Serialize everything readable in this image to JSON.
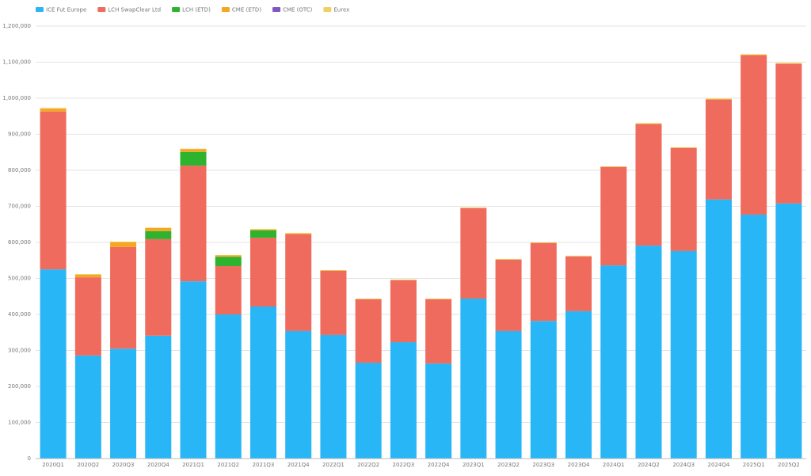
{
  "chart_data": {
    "type": "stacked_bar",
    "categories": [
      "2020Q1",
      "2020Q2",
      "2020Q3",
      "2020Q4",
      "2021Q1",
      "2021Q2",
      "2021Q3",
      "2021Q4",
      "2022Q1",
      "2022Q2",
      "2022Q3",
      "2022Q4",
      "2023Q1",
      "2023Q2",
      "2023Q3",
      "2023Q4",
      "2024Q1",
      "2024Q2",
      "2024Q3",
      "2024Q4",
      "2025Q1",
      "2025Q2"
    ],
    "series": [
      {
        "name": "ICE Fut Europe",
        "color": "#29b6f6",
        "values": [
          525000,
          286000,
          305000,
          341000,
          492000,
          400000,
          422000,
          354000,
          343000,
          266000,
          323000,
          264000,
          444000,
          354000,
          382000,
          409000,
          536000,
          591000,
          576000,
          719000,
          677000,
          708000
        ]
      },
      {
        "name": "LCH SwapClear Ltd",
        "color": "#ef6b5e",
        "values": [
          438000,
          217000,
          282000,
          268000,
          321000,
          134000,
          191000,
          268000,
          178000,
          176000,
          172000,
          178000,
          251000,
          198000,
          216000,
          152000,
          273000,
          337000,
          286000,
          277000,
          442000,
          387000
        ]
      },
      {
        "name": "LCH (ETD)",
        "color": "#2db32d",
        "values": [
          0,
          0,
          0,
          22000,
          38000,
          26000,
          20000,
          0,
          0,
          0,
          0,
          0,
          0,
          0,
          0,
          0,
          0,
          0,
          0,
          0,
          0,
          0
        ]
      },
      {
        "name": "CME (ETD)",
        "color": "#f5a623",
        "values": [
          8000,
          7000,
          13000,
          9000,
          8000,
          4000,
          3000,
          3000,
          1000,
          1000,
          1000,
          1000,
          1000,
          1000,
          1000,
          1000,
          1000,
          2000,
          1000,
          2000,
          2000,
          2000
        ]
      },
      {
        "name": "CME (OTC)",
        "color": "#7e57c2",
        "values": [
          0,
          0,
          0,
          0,
          0,
          0,
          0,
          0,
          0,
          0,
          0,
          0,
          0,
          0,
          0,
          0,
          0,
          0,
          0,
          0,
          0,
          0
        ]
      },
      {
        "name": "Eurex",
        "color": "#f0d060",
        "values": [
          2000,
          2000,
          2000,
          1000,
          1000,
          1000,
          1000,
          1000,
          1000,
          1000,
          1000,
          1000,
          1000,
          1000,
          1000,
          1000,
          1000,
          1000,
          1000,
          1000,
          1000,
          1000
        ]
      }
    ],
    "ylim": [
      0,
      1200000
    ],
    "yticks": [
      0,
      {
        "value": 100000,
        "label": "100,000"
      },
      {
        "value": 200000,
        "label": "200,000"
      },
      {
        "value": 300000,
        "label": "300,000"
      },
      {
        "value": 400000,
        "label": "400,000"
      },
      {
        "value": 500000,
        "label": "500,000"
      },
      {
        "value": 600000,
        "label": "600,000"
      },
      {
        "value": 700000,
        "label": "700,000"
      },
      {
        "value": 800000,
        "label": "800,000"
      },
      {
        "value": 900000,
        "label": "900,000"
      },
      {
        "value": 1000000,
        "label": "1,000,000"
      },
      {
        "value": 1100000,
        "label": "1,100,000"
      },
      {
        "value": 1200000,
        "label": "1,200,000"
      }
    ],
    "grid": true,
    "legend": "top-left"
  }
}
